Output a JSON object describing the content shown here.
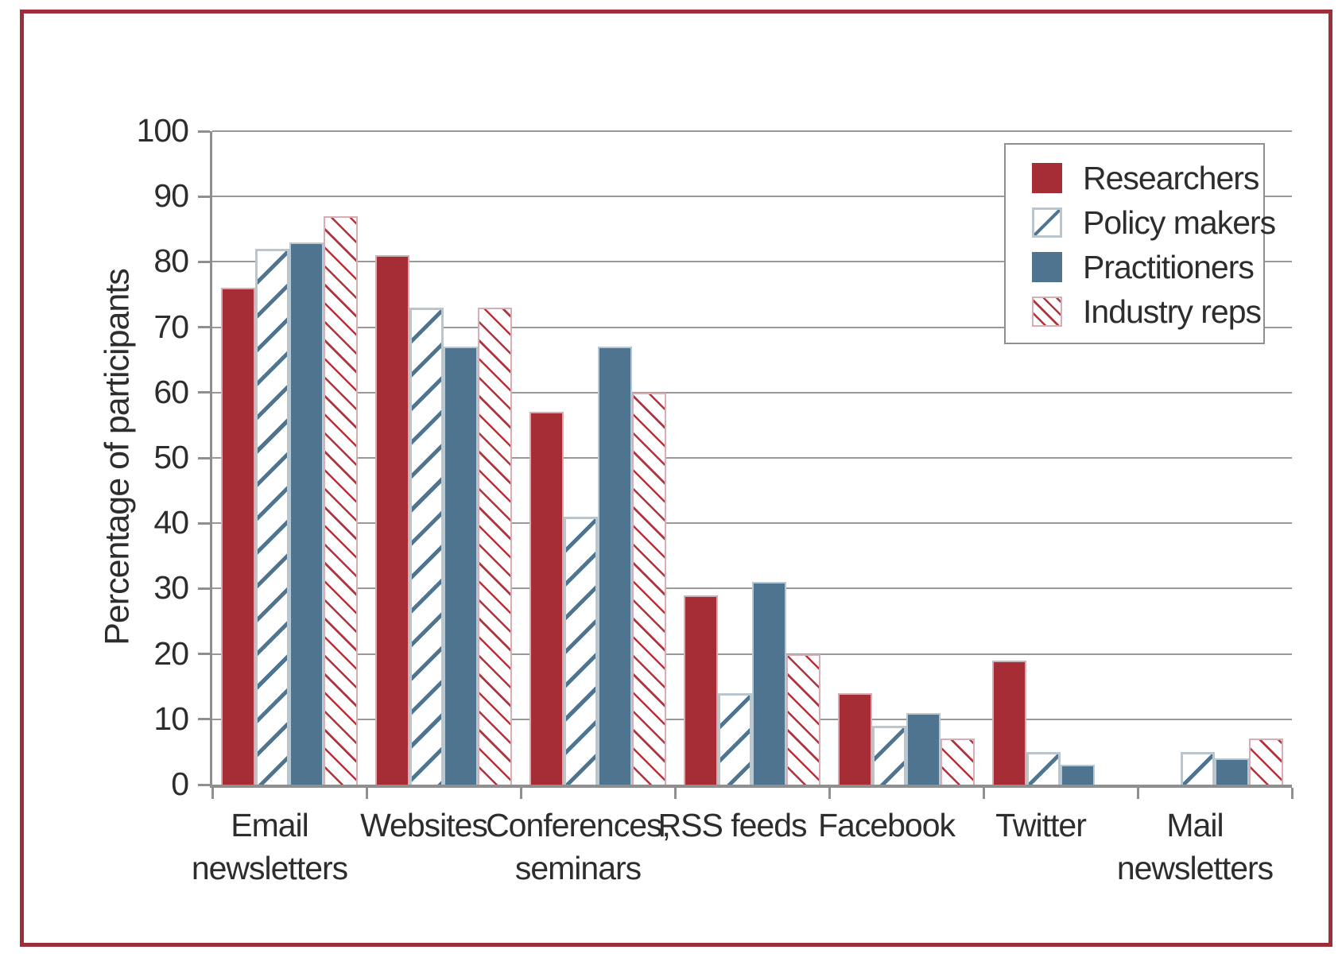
{
  "chart_data": {
    "type": "bar",
    "title": "",
    "ylabel": "Percentage of participants",
    "xlabel": "",
    "ylim": [
      0,
      100
    ],
    "ytick_interval": 10,
    "grid": true,
    "legend_position": "top-right",
    "categories": [
      "Email\nnewsletters",
      "Websites",
      "Conferences,\nseminars",
      "RSS feeds",
      "Facebook",
      "Twitter",
      "Mail\nnewsletters"
    ],
    "series": [
      {
        "name": "Researchers",
        "style": "solid",
        "color": "#a62c36",
        "values": [
          76,
          81,
          57,
          29,
          14,
          19,
          0
        ]
      },
      {
        "name": "Policy makers",
        "style": "hatch-forward",
        "color": "#4e7490",
        "values": [
          82,
          73,
          41,
          14,
          9,
          5,
          5
        ]
      },
      {
        "name": "Practitioners",
        "style": "solid",
        "color": "#4e7490",
        "values": [
          83,
          67,
          67,
          31,
          11,
          3,
          4
        ]
      },
      {
        "name": "Industry reps",
        "style": "hatch-back",
        "color": "#b2333c",
        "values": [
          87,
          73,
          60,
          20,
          7,
          0,
          7
        ]
      }
    ],
    "colors": {
      "frame_border": "#9e2f3a",
      "gridline": "#999999",
      "axis": "#8f8f8f",
      "text": "#2d2d2d"
    }
  }
}
